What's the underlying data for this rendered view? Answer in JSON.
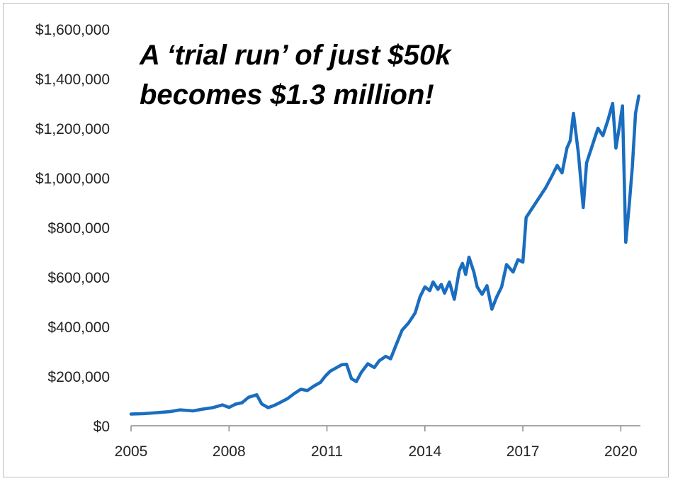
{
  "chart_data": {
    "type": "line",
    "title_lines": [
      "A ‘trial run’ of just $50k",
      "becomes $1.3 million!"
    ],
    "xlabel": "",
    "ylabel": "",
    "xlim": [
      2005,
      2020.6
    ],
    "ylim": [
      0,
      1600000
    ],
    "x_ticks": [
      2005,
      2008,
      2011,
      2014,
      2017,
      2020
    ],
    "y_ticks": [
      0,
      200000,
      400000,
      600000,
      800000,
      1000000,
      1200000,
      1400000,
      1600000
    ],
    "y_tick_labels": [
      "$0",
      "$200,000",
      "$400,000",
      "$600,000",
      "$800,000",
      "$1,000,000",
      "$1,200,000",
      "$1,400,000",
      "$1,600,000"
    ],
    "x_tick_labels": [
      "2005",
      "2008",
      "2011",
      "2014",
      "2017",
      "2020"
    ],
    "grid": false,
    "line_color": "#1a6dbf",
    "series": [
      {
        "points": [
          [
            2005.0,
            47000
          ],
          [
            2005.4,
            49000
          ],
          [
            2005.8,
            53000
          ],
          [
            2006.2,
            57000
          ],
          [
            2006.5,
            64000
          ],
          [
            2006.9,
            60000
          ],
          [
            2007.2,
            67000
          ],
          [
            2007.5,
            73000
          ],
          [
            2007.8,
            84000
          ],
          [
            2008.0,
            74000
          ],
          [
            2008.2,
            87000
          ],
          [
            2008.4,
            93000
          ],
          [
            2008.6,
            115000
          ],
          [
            2008.85,
            125000
          ],
          [
            2009.0,
            88000
          ],
          [
            2009.2,
            73000
          ],
          [
            2009.4,
            83000
          ],
          [
            2009.6,
            96000
          ],
          [
            2009.8,
            110000
          ],
          [
            2010.0,
            130000
          ],
          [
            2010.2,
            147000
          ],
          [
            2010.4,
            142000
          ],
          [
            2010.6,
            160000
          ],
          [
            2010.8,
            175000
          ],
          [
            2010.95,
            200000
          ],
          [
            2011.1,
            220000
          ],
          [
            2011.3,
            235000
          ],
          [
            2011.45,
            246000
          ],
          [
            2011.6,
            248000
          ],
          [
            2011.75,
            190000
          ],
          [
            2011.9,
            178000
          ],
          [
            2012.05,
            215000
          ],
          [
            2012.25,
            250000
          ],
          [
            2012.45,
            235000
          ],
          [
            2012.6,
            262000
          ],
          [
            2012.8,
            280000
          ],
          [
            2012.95,
            270000
          ],
          [
            2013.1,
            320000
          ],
          [
            2013.3,
            385000
          ],
          [
            2013.5,
            415000
          ],
          [
            2013.7,
            455000
          ],
          [
            2013.85,
            520000
          ],
          [
            2014.0,
            560000
          ],
          [
            2014.15,
            545000
          ],
          [
            2014.25,
            580000
          ],
          [
            2014.4,
            550000
          ],
          [
            2014.5,
            570000
          ],
          [
            2014.6,
            535000
          ],
          [
            2014.75,
            580000
          ],
          [
            2014.9,
            510000
          ],
          [
            2015.05,
            625000
          ],
          [
            2015.15,
            655000
          ],
          [
            2015.25,
            610000
          ],
          [
            2015.35,
            680000
          ],
          [
            2015.5,
            620000
          ],
          [
            2015.6,
            560000
          ],
          [
            2015.75,
            530000
          ],
          [
            2015.9,
            565000
          ],
          [
            2016.05,
            470000
          ],
          [
            2016.2,
            520000
          ],
          [
            2016.35,
            560000
          ],
          [
            2016.5,
            650000
          ],
          [
            2016.7,
            620000
          ],
          [
            2016.85,
            670000
          ],
          [
            2017.0,
            660000
          ],
          [
            2017.1,
            840000
          ],
          [
            2017.3,
            880000
          ],
          [
            2017.5,
            920000
          ],
          [
            2017.7,
            960000
          ],
          [
            2017.9,
            1010000
          ],
          [
            2018.05,
            1050000
          ],
          [
            2018.2,
            1020000
          ],
          [
            2018.35,
            1120000
          ],
          [
            2018.45,
            1150000
          ],
          [
            2018.55,
            1260000
          ],
          [
            2018.7,
            1100000
          ],
          [
            2018.85,
            880000
          ],
          [
            2018.95,
            1060000
          ],
          [
            2019.1,
            1120000
          ],
          [
            2019.3,
            1200000
          ],
          [
            2019.45,
            1170000
          ],
          [
            2019.6,
            1230000
          ],
          [
            2019.75,
            1300000
          ],
          [
            2019.85,
            1120000
          ],
          [
            2019.95,
            1200000
          ],
          [
            2020.05,
            1290000
          ],
          [
            2020.15,
            740000
          ],
          [
            2020.25,
            880000
          ],
          [
            2020.35,
            1040000
          ],
          [
            2020.45,
            1260000
          ],
          [
            2020.55,
            1330000
          ]
        ]
      }
    ]
  }
}
